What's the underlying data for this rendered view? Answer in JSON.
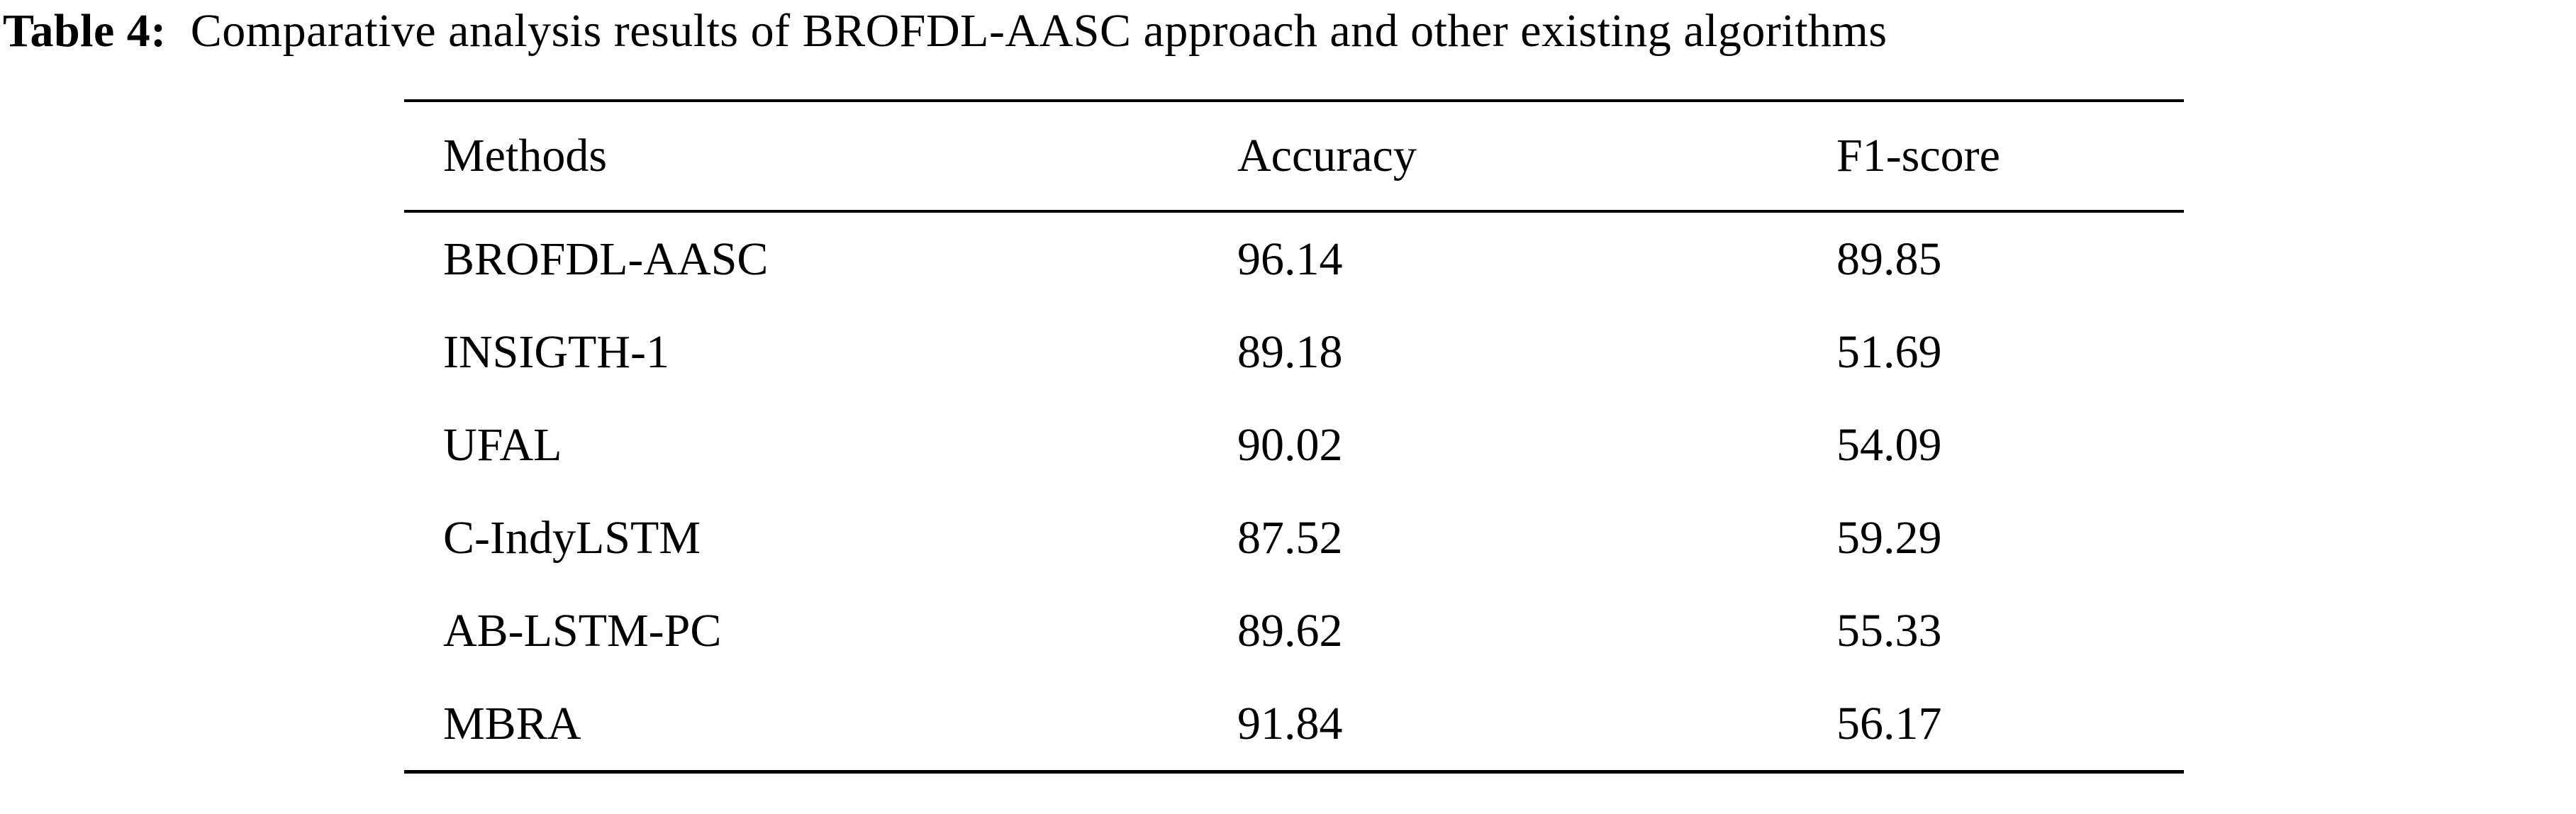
{
  "title": {
    "label": "Table 4:",
    "text": "Comparative analysis results of BROFDL-AASC approach and other existing algorithms"
  },
  "table": {
    "headers": [
      "Methods",
      "Accuracy",
      "F1-score"
    ],
    "rows": [
      {
        "method": "BROFDL-AASC",
        "accuracy": "96.14",
        "f1": "89.85"
      },
      {
        "method": "INSIGTH-1",
        "accuracy": "89.18",
        "f1": "51.69"
      },
      {
        "method": "UFAL",
        "accuracy": "90.02",
        "f1": "54.09"
      },
      {
        "method": "C-IndyLSTM",
        "accuracy": "87.52",
        "f1": "59.29"
      },
      {
        "method": "AB-LSTM-PC",
        "accuracy": "89.62",
        "f1": "55.33"
      },
      {
        "method": "MBRA",
        "accuracy": "91.84",
        "f1": "56.17"
      }
    ]
  }
}
